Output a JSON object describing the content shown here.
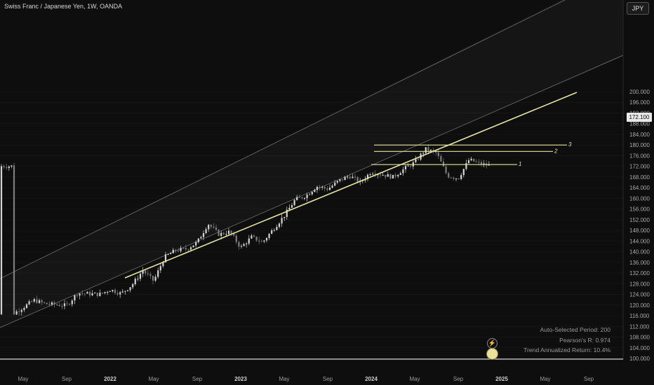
{
  "header": {
    "title": "Swiss Franc / Japanese Yen, 1W, OANDA",
    "currency": "JPY"
  },
  "price_tag": "172.100",
  "stats": [
    "Auto-Selected Period: 200",
    "Pearson's R: 0.974",
    "Trend Annualized Return: 10.4%"
  ],
  "icons": {
    "lightning": "lightning-icon",
    "replay": "replay-icon"
  },
  "colors": {
    "background": "#0e0e0e",
    "trendline": "#e6e6a0",
    "channel": "#8a8a8a",
    "candle": "#c8c8c8"
  },
  "chart_data": {
    "type": "candlestick",
    "symbol": "CHFJPY",
    "timeframe": "1W",
    "y_axis_ticks": [
      "200.000",
      "196.000",
      "192.000",
      "188.000",
      "184.000",
      "180.000",
      "176.000",
      "172.000",
      "168.000",
      "164.000",
      "160.000",
      "156.000",
      "152.000",
      "148.000",
      "144.000",
      "140.000",
      "136.000",
      "132.000",
      "128.000",
      "124.000",
      "120.000",
      "116.000",
      "112.000",
      "108.000",
      "104.000",
      "100.000"
    ],
    "x_axis_ticks": [
      "May",
      "Sep",
      "2022",
      "May",
      "Sep",
      "2023",
      "May",
      "Sep",
      "2024",
      "May",
      "Sep",
      "2025",
      "May",
      "Sep"
    ],
    "ylim": [
      100,
      201
    ],
    "last_price": 172.1,
    "horizontal_levels": [
      {
        "label": "1",
        "value": 172.7
      },
      {
        "label": "2",
        "value": 177.6
      },
      {
        "label": "3",
        "value": 180.0
      }
    ],
    "close_path": [
      [
        "2021-04",
        116.5
      ],
      [
        "2021-06",
        121.8
      ],
      [
        "2021-07",
        120.5
      ],
      [
        "2021-09",
        119.8
      ],
      [
        "2021-10",
        124.5
      ],
      [
        "2021-12",
        124.0
      ],
      [
        "2022-01",
        125.8
      ],
      [
        "2022-02",
        124.3
      ],
      [
        "2022-03",
        127.5
      ],
      [
        "2022-04",
        133.0
      ],
      [
        "2022-05",
        129.0
      ],
      [
        "2022-06",
        138.0
      ],
      [
        "2022-07",
        140.5
      ],
      [
        "2022-08",
        141.0
      ],
      [
        "2022-09",
        143.5
      ],
      [
        "2022-10",
        150.5
      ],
      [
        "2022-11",
        146.5
      ],
      [
        "2022-12",
        147.5
      ],
      [
        "2023-01",
        141.5
      ],
      [
        "2023-02",
        145.5
      ],
      [
        "2023-03",
        143.5
      ],
      [
        "2023-04",
        148.5
      ],
      [
        "2023-05",
        153.5
      ],
      [
        "2023-06",
        159.5
      ],
      [
        "2023-07",
        161.0
      ],
      [
        "2023-08",
        164.5
      ],
      [
        "2023-09",
        163.5
      ],
      [
        "2023-10",
        166.5
      ],
      [
        "2023-11",
        168.5
      ],
      [
        "2023-12",
        166.0
      ],
      [
        "2024-01",
        170.0
      ],
      [
        "2024-02",
        169.0
      ],
      [
        "2024-03",
        168.0
      ],
      [
        "2024-04",
        171.0
      ],
      [
        "2024-05",
        173.5
      ],
      [
        "2024-06",
        178.5
      ],
      [
        "2024-07",
        177.0
      ],
      [
        "2024-08",
        168.5
      ],
      [
        "2024-09",
        167.5
      ],
      [
        "2024-10",
        174.5
      ],
      [
        "2024-11",
        173.0
      ],
      [
        "2024-12",
        172.1
      ]
    ]
  }
}
